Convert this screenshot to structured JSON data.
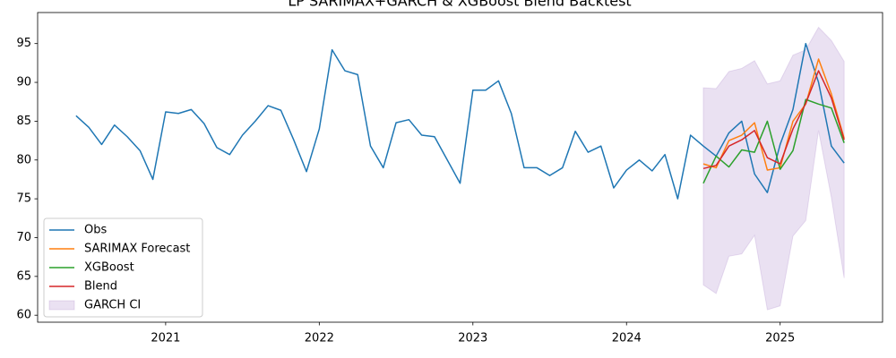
{
  "chart_data": {
    "type": "line",
    "title": "LP SARIMAX+GARCH & XGBoost Blend Backtest",
    "x": [
      "2020-06",
      "2020-07",
      "2020-08",
      "2020-09",
      "2020-10",
      "2020-11",
      "2020-12",
      "2021-01",
      "2021-02",
      "2021-03",
      "2021-04",
      "2021-05",
      "2021-06",
      "2021-07",
      "2021-08",
      "2021-09",
      "2021-10",
      "2021-11",
      "2021-12",
      "2022-01",
      "2022-02",
      "2022-03",
      "2022-04",
      "2022-05",
      "2022-06",
      "2022-07",
      "2022-08",
      "2022-09",
      "2022-10",
      "2022-11",
      "2022-12",
      "2023-01",
      "2023-02",
      "2023-03",
      "2023-04",
      "2023-05",
      "2023-06",
      "2023-07",
      "2023-08",
      "2023-09",
      "2023-10",
      "2023-11",
      "2023-12",
      "2024-01",
      "2024-02",
      "2024-03",
      "2024-04",
      "2024-05",
      "2024-06",
      "2024-07",
      "2024-08",
      "2024-09",
      "2024-10",
      "2024-11",
      "2024-12",
      "2025-01",
      "2025-02",
      "2025-03",
      "2025-04",
      "2025-05",
      "2025-06"
    ],
    "series": [
      {
        "name": "Obs",
        "color": "#1f77b4",
        "values": [
          85.7,
          84.2,
          82.0,
          84.5,
          83.0,
          81.2,
          77.5,
          86.2,
          86.0,
          86.5,
          84.7,
          81.6,
          80.7,
          83.2,
          85.0,
          87.0,
          86.4,
          82.6,
          78.5,
          84.0,
          94.2,
          91.5,
          91.0,
          81.8,
          79.0,
          84.8,
          85.2,
          83.2,
          83.0,
          80.0,
          77.0,
          89.0,
          89.0,
          90.2,
          86.0,
          79.0,
          79.0,
          78.0,
          79.0,
          83.7,
          81.0,
          81.8,
          76.4,
          78.7,
          80.0,
          78.6,
          80.7,
          75.0,
          83.2,
          81.8,
          80.5,
          83.5,
          85.0,
          78.2,
          75.8,
          82.0,
          86.5,
          95.0,
          90.0,
          81.8,
          79.6
        ]
      },
      {
        "name": "SARIMAX Forecast",
        "color": "#ff7f0e",
        "values": [
          null,
          null,
          null,
          null,
          null,
          null,
          null,
          null,
          null,
          null,
          null,
          null,
          null,
          null,
          null,
          null,
          null,
          null,
          null,
          null,
          null,
          null,
          null,
          null,
          null,
          null,
          null,
          null,
          null,
          null,
          null,
          null,
          null,
          null,
          null,
          null,
          null,
          null,
          null,
          null,
          null,
          null,
          null,
          null,
          null,
          null,
          null,
          null,
          null,
          79.5,
          79.0,
          82.5,
          83.2,
          84.8,
          78.7,
          79.0,
          85.0,
          87.2,
          93.0,
          88.5,
          82.8
        ]
      },
      {
        "name": "XGBoost",
        "color": "#2ca02c",
        "values": [
          null,
          null,
          null,
          null,
          null,
          null,
          null,
          null,
          null,
          null,
          null,
          null,
          null,
          null,
          null,
          null,
          null,
          null,
          null,
          null,
          null,
          null,
          null,
          null,
          null,
          null,
          null,
          null,
          null,
          null,
          null,
          null,
          null,
          null,
          null,
          null,
          null,
          null,
          null,
          null,
          null,
          null,
          null,
          null,
          null,
          null,
          null,
          null,
          null,
          77.0,
          80.5,
          79.1,
          81.3,
          81.0,
          85.0,
          78.8,
          81.2,
          87.8,
          87.2,
          86.7,
          82.2
        ]
      },
      {
        "name": "Blend",
        "color": "#d62728",
        "values": [
          null,
          null,
          null,
          null,
          null,
          null,
          null,
          null,
          null,
          null,
          null,
          null,
          null,
          null,
          null,
          null,
          null,
          null,
          null,
          null,
          null,
          null,
          null,
          null,
          null,
          null,
          null,
          null,
          null,
          null,
          null,
          null,
          null,
          null,
          null,
          null,
          null,
          null,
          null,
          null,
          null,
          null,
          null,
          null,
          null,
          null,
          null,
          null,
          null,
          78.9,
          79.3,
          81.8,
          82.6,
          83.8,
          80.3,
          79.5,
          84.0,
          87.3,
          91.5,
          88.0,
          82.6
        ]
      }
    ],
    "bands": [
      {
        "name": "GARCH CI",
        "color": "#9467bd",
        "alpha": 0.2,
        "upper": [
          null,
          null,
          null,
          null,
          null,
          null,
          null,
          null,
          null,
          null,
          null,
          null,
          null,
          null,
          null,
          null,
          null,
          null,
          null,
          null,
          null,
          null,
          null,
          null,
          null,
          null,
          null,
          null,
          null,
          null,
          null,
          null,
          null,
          null,
          null,
          null,
          null,
          null,
          null,
          null,
          null,
          null,
          null,
          null,
          null,
          null,
          null,
          null,
          null,
          89.3,
          89.2,
          91.4,
          91.8,
          92.8,
          89.8,
          90.2,
          93.5,
          94.2,
          97.1,
          95.4,
          92.7
        ],
        "lower": [
          null,
          null,
          null,
          null,
          null,
          null,
          null,
          null,
          null,
          null,
          null,
          null,
          null,
          null,
          null,
          null,
          null,
          null,
          null,
          null,
          null,
          null,
          null,
          null,
          null,
          null,
          null,
          null,
          null,
          null,
          null,
          null,
          null,
          null,
          null,
          null,
          null,
          null,
          null,
          null,
          null,
          null,
          null,
          null,
          null,
          null,
          null,
          null,
          null,
          63.9,
          62.8,
          67.6,
          67.9,
          70.3,
          60.7,
          61.2,
          70.2,
          72.2,
          83.8,
          75.2,
          64.8
        ]
      }
    ],
    "xlim": [
      "2020-03",
      "2025-09"
    ],
    "xticks": [
      {
        "value": "2021-01",
        "label": "2021"
      },
      {
        "value": "2022-01",
        "label": "2022"
      },
      {
        "value": "2023-01",
        "label": "2023"
      },
      {
        "value": "2024-01",
        "label": "2024"
      },
      {
        "value": "2025-01",
        "label": "2025"
      }
    ],
    "ylim": [
      59.1,
      99.0
    ],
    "yticks": [
      60,
      65,
      70,
      75,
      80,
      85,
      90,
      95
    ],
    "grid": false,
    "legend": "lower left"
  }
}
